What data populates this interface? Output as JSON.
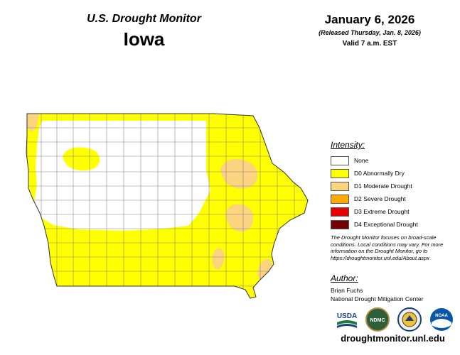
{
  "header": {
    "title": "U.S. Drought Monitor",
    "state": "Iowa",
    "date": "January 6, 2026",
    "released": "(Released Thursday, Jan. 8, 2026)",
    "valid": "Valid 7 a.m. EST"
  },
  "legend": {
    "heading": "Intensity:",
    "items": [
      {
        "label": "None",
        "color": "#ffffff"
      },
      {
        "label": "D0 Abnormally Dry",
        "color": "#ffff00"
      },
      {
        "label": "D1 Moderate Drought",
        "color": "#fcd37f"
      },
      {
        "label": "D2 Severe Drought",
        "color": "#ffaa00"
      },
      {
        "label": "D3 Extreme Drought",
        "color": "#e60000"
      },
      {
        "label": "D4 Exceptional Drought",
        "color": "#730000"
      }
    ]
  },
  "note": "The Drought Monitor focuses on broad-scale conditions. Local conditions may vary. For more information on the Drought Monitor, go to https://droughtmonitor.unl.edu/About.aspx",
  "author": {
    "heading": "Author:",
    "name": "Brian Fuchs",
    "org": "National Drought Mitigation Center"
  },
  "logos": {
    "usda": "USDA",
    "ndmc": "NDMC",
    "noaa": "NOAA"
  },
  "footer": {
    "url": "droughtmonitor.unl.edu"
  }
}
